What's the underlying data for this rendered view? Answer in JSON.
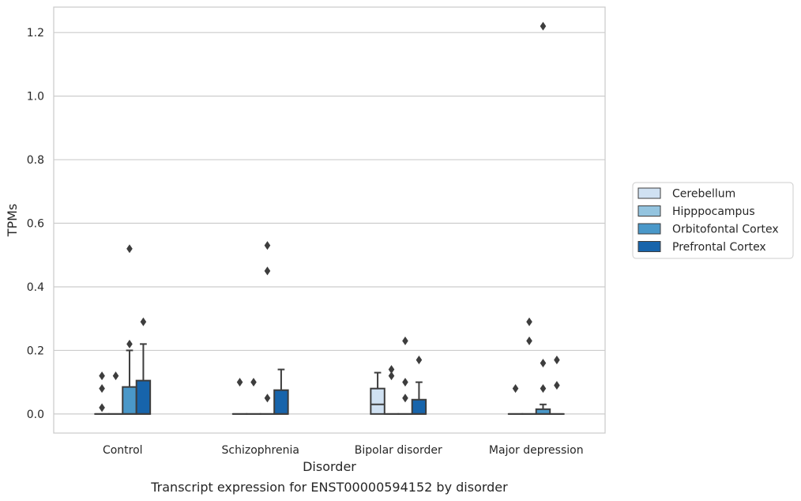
{
  "chart_data": {
    "type": "box",
    "xlabel": "Disorder",
    "ylabel": "TPMs",
    "caption": "Transcript expression for ENST00000594152 by disorder",
    "categories": [
      "Control",
      "Schizophrenia",
      "Bipolar disorder",
      "Major depression"
    ],
    "ylim": [
      -0.06,
      1.28
    ],
    "yticks": [
      0.0,
      0.2,
      0.4,
      0.6,
      0.8,
      1.0,
      1.2
    ],
    "ytick_labels": [
      "0.0",
      "0.2",
      "0.4",
      "0.6",
      "0.8",
      "1.0",
      "1.2"
    ],
    "grid": true,
    "legend_position": "right",
    "series": [
      {
        "name": "Cerebellum",
        "color": "#d0e1f2",
        "boxes": [
          {
            "q1": 0,
            "median": 0,
            "q3": 0,
            "whislo": 0,
            "whishi": 0,
            "fliers": [
              0.12,
              0.08,
              0.02
            ]
          },
          {
            "q1": 0,
            "median": 0,
            "q3": 0,
            "whislo": 0,
            "whishi": 0,
            "fliers": [
              0.1
            ]
          },
          {
            "q1": 0,
            "median": 0.03,
            "q3": 0.08,
            "whislo": 0,
            "whishi": 0.13,
            "fliers": []
          },
          {
            "q1": 0,
            "median": 0,
            "q3": 0,
            "whislo": 0,
            "whishi": 0,
            "fliers": [
              0.08
            ]
          }
        ]
      },
      {
        "name": "Hipppocampus",
        "color": "#94c4df",
        "boxes": [
          {
            "q1": 0,
            "median": 0,
            "q3": 0,
            "whislo": 0,
            "whishi": 0,
            "fliers": [
              0.12
            ]
          },
          {
            "q1": 0,
            "median": 0,
            "q3": 0,
            "whislo": 0,
            "whishi": 0,
            "fliers": [
              0.1
            ]
          },
          {
            "q1": 0,
            "median": 0,
            "q3": 0,
            "whislo": 0,
            "whishi": 0,
            "fliers": [
              0.14,
              0.12
            ]
          },
          {
            "q1": 0,
            "median": 0,
            "q3": 0,
            "whislo": 0,
            "whishi": 0,
            "fliers": [
              0.29,
              0.23
            ]
          }
        ]
      },
      {
        "name": "Orbitofontal Cortex",
        "color": "#4a98c9",
        "boxes": [
          {
            "q1": 0,
            "median": 0,
            "q3": 0.085,
            "whislo": 0,
            "whishi": 0.2,
            "fliers": [
              0.52,
              0.22
            ]
          },
          {
            "q1": 0,
            "median": 0,
            "q3": 0,
            "whislo": 0,
            "whishi": 0,
            "fliers": [
              0.53,
              0.45,
              0.05
            ]
          },
          {
            "q1": 0,
            "median": 0,
            "q3": 0,
            "whislo": 0,
            "whishi": 0,
            "fliers": [
              0.23,
              0.1,
              0.05
            ]
          },
          {
            "q1": 0,
            "median": 0,
            "q3": 0.015,
            "whislo": 0,
            "whishi": 0.03,
            "fliers": [
              1.22,
              0.16,
              0.08
            ]
          }
        ]
      },
      {
        "name": "Prefrontal Cortex",
        "color": "#1764ab",
        "boxes": [
          {
            "q1": 0,
            "median": 0,
            "q3": 0.105,
            "whislo": 0,
            "whishi": 0.22,
            "fliers": [
              0.29
            ]
          },
          {
            "q1": 0,
            "median": 0,
            "q3": 0.075,
            "whislo": 0,
            "whishi": 0.14,
            "fliers": []
          },
          {
            "q1": 0,
            "median": 0,
            "q3": 0.045,
            "whislo": 0,
            "whishi": 0.1,
            "fliers": [
              0.17
            ]
          },
          {
            "q1": 0,
            "median": 0,
            "q3": 0,
            "whislo": 0,
            "whishi": 0,
            "fliers": [
              0.17,
              0.09
            ]
          }
        ]
      }
    ]
  }
}
